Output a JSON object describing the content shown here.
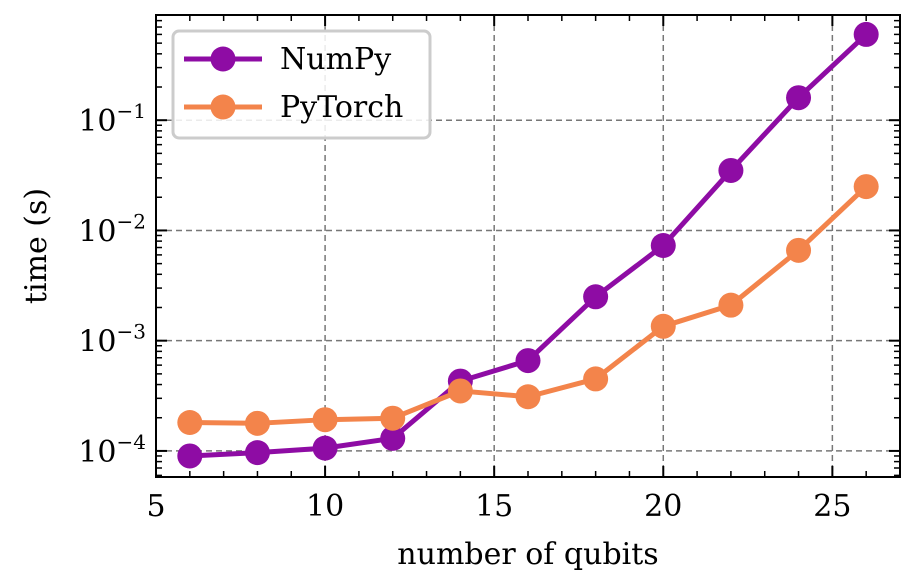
{
  "chart_data": {
    "type": "line",
    "title": "",
    "xlabel": "number of qubits",
    "ylabel": "time (s)",
    "xlim": [
      5,
      27
    ],
    "ylim": [
      5.8e-05,
      0.9
    ],
    "yscale": "log",
    "grid": true,
    "legend_position": "top-left",
    "x_ticks": [
      5,
      10,
      15,
      20,
      25
    ],
    "y_ticks": [
      {
        "value": 0.0001,
        "base": "10",
        "exp": "−4"
      },
      {
        "value": 0.001,
        "base": "10",
        "exp": "−3"
      },
      {
        "value": 0.01,
        "base": "10",
        "exp": "−2"
      },
      {
        "value": 0.1,
        "base": "10",
        "exp": "−1"
      }
    ],
    "x": [
      6,
      8,
      10,
      12,
      14,
      16,
      18,
      20,
      22,
      24,
      26
    ],
    "series": [
      {
        "name": "NumPy",
        "color": "#8e0ca4",
        "values": [
          9e-05,
          9.65e-05,
          0.000106,
          0.00013,
          0.00043,
          0.00066,
          0.0025,
          0.0073,
          0.035,
          0.16,
          0.6
        ]
      },
      {
        "name": "PyTorch",
        "color": "#f3844b",
        "values": [
          0.000181,
          0.000178,
          0.000192,
          0.000198,
          0.00035,
          0.00031,
          0.00045,
          0.00135,
          0.0021,
          0.0066,
          0.025
        ]
      }
    ]
  }
}
